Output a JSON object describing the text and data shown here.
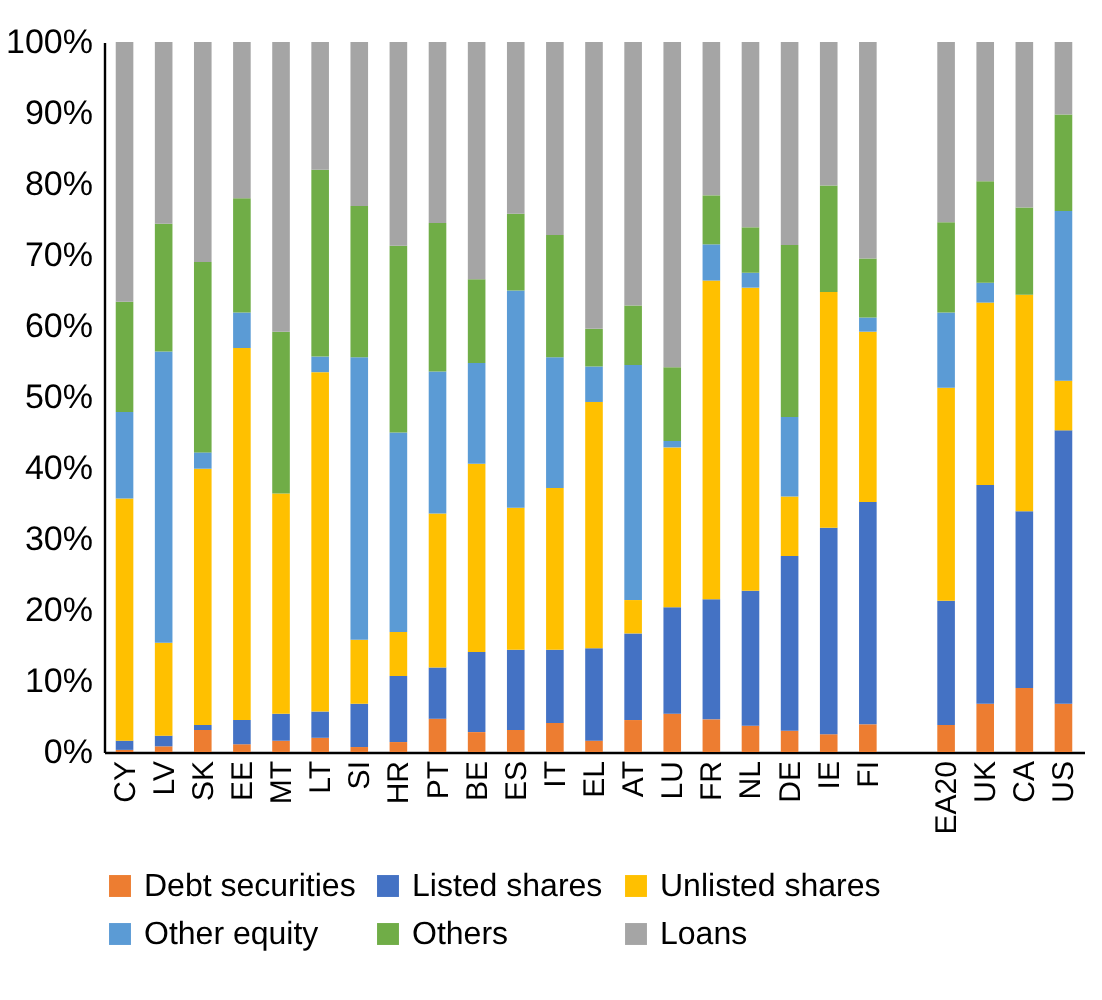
{
  "chart_data": {
    "type": "bar",
    "stacked": true,
    "categories": [
      "CY",
      "LV",
      "SK",
      "EE",
      "MT",
      "LT",
      "SI",
      "HR",
      "PT",
      "BE",
      "ES",
      "IT",
      "EL",
      "AT",
      "LU",
      "FR",
      "NL",
      "DE",
      "IE",
      "FI",
      null,
      "EA20",
      "UK",
      "CA",
      "US"
    ],
    "ylim": [
      0,
      100
    ],
    "yticks": [
      {
        "value": 0,
        "label": "0%"
      },
      {
        "value": 10,
        "label": "10%"
      },
      {
        "value": 20,
        "label": "20%"
      },
      {
        "value": 30,
        "label": "30%"
      },
      {
        "value": 40,
        "label": "40%"
      },
      {
        "value": 50,
        "label": "50%"
      },
      {
        "value": 60,
        "label": "60%"
      },
      {
        "value": 70,
        "label": "70%"
      },
      {
        "value": 80,
        "label": "80%"
      },
      {
        "value": 90,
        "label": "90%"
      },
      {
        "value": 100,
        "label": "100%"
      }
    ],
    "grid": false,
    "legend": "bottom",
    "series": [
      {
        "name": "Debt securities",
        "color": "#ed7d31",
        "values": [
          0.3,
          0.8,
          3.1,
          1.1,
          1.6,
          2.0,
          0.7,
          1.4,
          4.7,
          2.8,
          3.1,
          4.1,
          1.6,
          4.5,
          5.4,
          4.6,
          3.7,
          3.0,
          2.5,
          3.9,
          null,
          3.8,
          6.8,
          9.0,
          6.8
        ]
      },
      {
        "name": "Listed shares",
        "color": "#4472c4",
        "values": [
          1.3,
          1.5,
          0.7,
          3.4,
          3.8,
          3.7,
          6.1,
          9.3,
          7.2,
          11.3,
          11.3,
          10.3,
          13.0,
          12.2,
          15.0,
          16.9,
          19.0,
          24.6,
          29.1,
          31.3,
          null,
          17.5,
          30.8,
          24.9,
          38.5
        ]
      },
      {
        "name": "Unlisted shares",
        "color": "#ffc000",
        "values": [
          34.1,
          13.1,
          36.1,
          52.4,
          31.0,
          47.8,
          9.0,
          6.2,
          21.7,
          26.5,
          20.0,
          22.8,
          34.7,
          4.7,
          22.5,
          44.9,
          42.7,
          8.4,
          33.2,
          24.0,
          null,
          30.0,
          25.7,
          30.5,
          7.0
        ]
      },
      {
        "name": "Other equity",
        "color": "#5b9bd5",
        "values": [
          12.2,
          41.0,
          2.3,
          5.0,
          0,
          2.2,
          39.8,
          28.1,
          20.0,
          14.2,
          30.6,
          18.4,
          5.0,
          33.1,
          0.9,
          5.1,
          2.1,
          11.2,
          0,
          2.0,
          null,
          10.6,
          2.8,
          0,
          23.9
        ]
      },
      {
        "name": "Others",
        "color": "#70ad47",
        "values": [
          15.5,
          18.0,
          26.8,
          16.1,
          22.8,
          26.3,
          21.3,
          26.3,
          20.9,
          11.8,
          10.8,
          17.2,
          5.3,
          8.4,
          10.4,
          6.9,
          6.4,
          24.2,
          15.0,
          8.3,
          null,
          12.7,
          14.3,
          12.3,
          13.6
        ]
      },
      {
        "name": "Loans",
        "color": "#a5a5a5",
        "values": [
          36.6,
          25.6,
          31.0,
          22.0,
          40.8,
          18.0,
          23.1,
          28.7,
          25.5,
          33.4,
          24.2,
          27.2,
          40.4,
          37.1,
          45.8,
          21.6,
          26.1,
          28.6,
          20.2,
          30.5,
          null,
          25.4,
          19.6,
          23.3,
          10.2
        ]
      }
    ]
  }
}
